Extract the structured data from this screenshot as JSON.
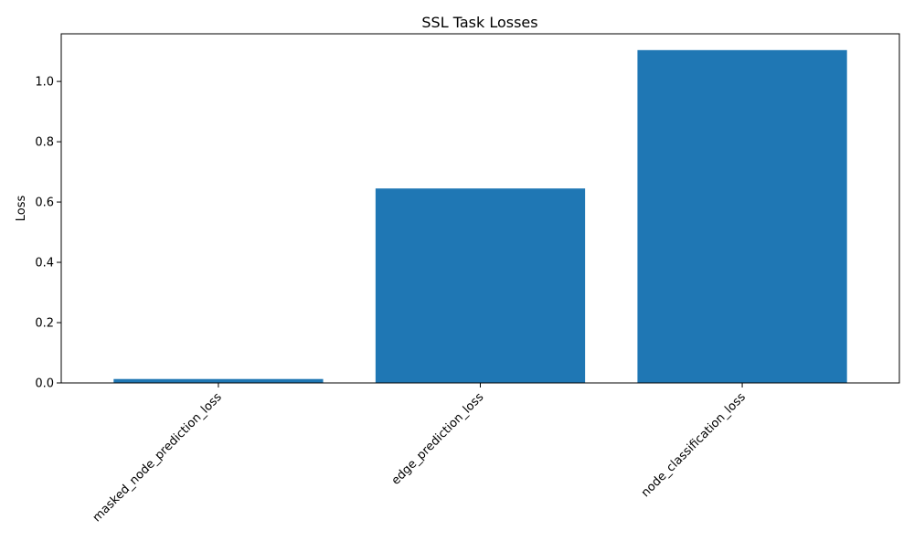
{
  "chart_data": {
    "type": "bar",
    "title": "SSL Task Losses",
    "xlabel": "",
    "ylabel": "Loss",
    "categories": [
      "masked_node_prediction_loss",
      "edge_prediction_loss",
      "node_classification_loss"
    ],
    "values": [
      0.013,
      0.645,
      1.104
    ],
    "ylim": [
      0,
      1.158
    ],
    "yticks": [
      "0.0",
      "0.2",
      "0.4",
      "0.6",
      "0.8",
      "1.0"
    ],
    "grid": false,
    "legend": "none",
    "bar_color": "#1f77b4"
  }
}
